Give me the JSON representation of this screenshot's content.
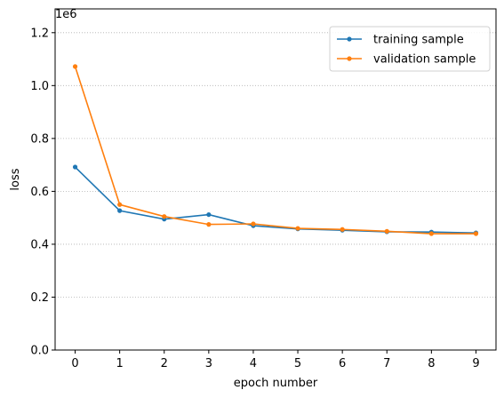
{
  "chart_data": {
    "type": "line",
    "title": "",
    "xlabel": "epoch number",
    "ylabel": "loss",
    "y_offset_label": "1e6",
    "x": [
      0,
      1,
      2,
      3,
      4,
      5,
      6,
      7,
      8,
      9
    ],
    "xticks": [
      "0",
      "1",
      "2",
      "3",
      "4",
      "5",
      "6",
      "7",
      "8",
      "9"
    ],
    "yticks": [
      0.0,
      0.2,
      0.4,
      0.6,
      0.8,
      1.0,
      1.2
    ],
    "ytick_labels": [
      "0.0",
      "0.2",
      "0.4",
      "0.6",
      "0.8",
      "1.0",
      "1.2"
    ],
    "xlim": [
      -0.45,
      9.45
    ],
    "ylim": [
      0.0,
      1.29
    ],
    "grid": "horizontal-dotted",
    "legend_position": "top-right",
    "series": [
      {
        "name": "training sample",
        "color": "#1f77b4",
        "values": [
          0.692,
          0.527,
          0.495,
          0.512,
          0.47,
          0.458,
          0.453,
          0.447,
          0.446,
          0.443
        ]
      },
      {
        "name": "validation sample",
        "color": "#ff7f0e",
        "values": [
          1.072,
          0.55,
          0.505,
          0.475,
          0.477,
          0.46,
          0.456,
          0.449,
          0.44,
          0.44
        ]
      }
    ]
  }
}
